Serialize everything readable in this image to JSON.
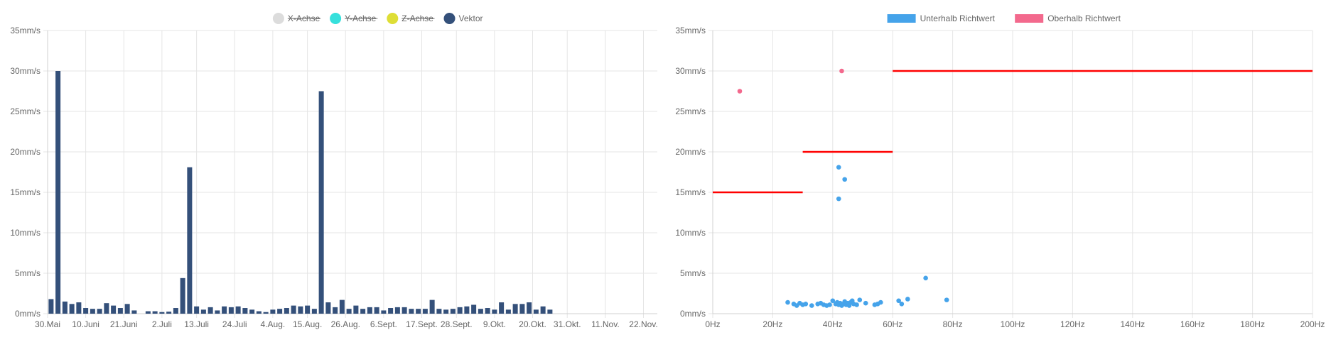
{
  "charts": {
    "left": {
      "legend": [
        {
          "label": "X-Achse",
          "color": "#dcdcdc",
          "hidden": true
        },
        {
          "label": "Y-Achse",
          "color": "#36e0dc",
          "hidden": true
        },
        {
          "label": "Z-Achse",
          "color": "#dede36",
          "hidden": true
        },
        {
          "label": "Vektor",
          "color": "#34507a",
          "hidden": false
        }
      ]
    },
    "right": {
      "legend": [
        {
          "label": "Unterhalb Richtwert",
          "color": "#45a3ea"
        },
        {
          "label": "Oberhalb Richtwert",
          "color": "#f3698d"
        }
      ]
    }
  },
  "chart_data": [
    {
      "type": "bar",
      "series": [
        {
          "name": "Vektor",
          "color": "#34507a",
          "values": [
            1.8,
            30,
            1.5,
            1.2,
            1.4,
            0.7,
            0.6,
            0.6,
            1.3,
            1.0,
            0.7,
            1.2,
            0.4,
            0,
            0.3,
            0.3,
            0.2,
            0.25,
            0.7,
            4.4,
            18.1,
            0.9,
            0.5,
            0.8,
            0.4,
            0.9,
            0.8,
            0.9,
            0.7,
            0.5,
            0.3,
            0.2,
            0.5,
            0.6,
            0.7,
            1.0,
            0.9,
            1.0,
            0.6,
            27.5,
            1.4,
            0.8,
            1.7,
            0.6,
            1.0,
            0.6,
            0.8,
            0.8,
            0.4,
            0.7,
            0.8,
            0.8,
            0.6,
            0.6,
            0.6,
            1.7,
            0.6,
            0.5,
            0.6,
            0.8,
            0.9,
            1.1,
            0.6,
            0.7,
            0.5,
            1.4,
            0.5,
            1.2,
            1.2,
            1.4,
            0.5,
            0.9,
            0.5
          ]
        }
      ],
      "xticks": [
        {
          "label": "30.Mai",
          "index": 0
        },
        {
          "label": "10.Juni",
          "index": 5.5
        },
        {
          "label": "21.Juni",
          "index": 11
        },
        {
          "label": "2.Juli",
          "index": 16.5
        },
        {
          "label": "13.Juli",
          "index": 21.5
        },
        {
          "label": "24.Juli",
          "index": 27
        },
        {
          "label": "4.Aug.",
          "index": 32.5
        },
        {
          "label": "15.Aug.",
          "index": 37.5
        },
        {
          "label": "26.Aug.",
          "index": 43
        },
        {
          "label": "6.Sept.",
          "index": 48.5
        },
        {
          "label": "17.Sept.",
          "index": 54
        },
        {
          "label": "28.Sept.",
          "index": 59
        },
        {
          "label": "9.Okt.",
          "index": 64.5
        },
        {
          "label": "20.Okt.",
          "index": 70
        },
        {
          "label": "31.Okt.",
          "index": 75
        },
        {
          "label": "11.Nov.",
          "index": 80.5
        },
        {
          "label": "22.Nov.",
          "index": 86
        }
      ],
      "x_total_slots": 88,
      "yticks": [
        "0mm/s",
        "5mm/s",
        "10mm/s",
        "15mm/s",
        "20mm/s",
        "25mm/s",
        "30mm/s",
        "35mm/s"
      ],
      "ylim": [
        0,
        35
      ],
      "grid": true,
      "legend_position": "top"
    },
    {
      "type": "scatter",
      "xlim": [
        0,
        200
      ],
      "ylim": [
        0,
        35
      ],
      "xticks": [
        "0Hz",
        "20Hz",
        "40Hz",
        "60Hz",
        "80Hz",
        "100Hz",
        "120Hz",
        "140Hz",
        "160Hz",
        "180Hz",
        "200Hz"
      ],
      "yticks": [
        "0mm/s",
        "5mm/s",
        "10mm/s",
        "15mm/s",
        "20mm/s",
        "25mm/s",
        "30mm/s",
        "35mm/s"
      ],
      "grid": true,
      "legend_position": "top",
      "threshold": {
        "color": "#ff0000",
        "segments": [
          {
            "x": [
              0,
              30
            ],
            "y": 15
          },
          {
            "x": [
              30,
              60
            ],
            "y": 20
          },
          {
            "x": [
              60,
              200
            ],
            "y": 30
          }
        ]
      },
      "series": [
        {
          "name": "Unterhalb Richtwert",
          "color": "#45a3ea",
          "points": [
            [
              25,
              1.4
            ],
            [
              27,
              1.2
            ],
            [
              28,
              1.0
            ],
            [
              29,
              1.3
            ],
            [
              30,
              1.1
            ],
            [
              31,
              1.2
            ],
            [
              33,
              1.0
            ],
            [
              35,
              1.2
            ],
            [
              36,
              1.3
            ],
            [
              37,
              1.1
            ],
            [
              38,
              1.0
            ],
            [
              39,
              1.1
            ],
            [
              40,
              1.6
            ],
            [
              41,
              1.2
            ],
            [
              41.5,
              1.4
            ],
            [
              42,
              1.1
            ],
            [
              42.5,
              1.3
            ],
            [
              43,
              1.0
            ],
            [
              43.5,
              1.2
            ],
            [
              44,
              1.5
            ],
            [
              44.5,
              1.1
            ],
            [
              45,
              1.3
            ],
            [
              45.5,
              1.0
            ],
            [
              46,
              1.4
            ],
            [
              46.5,
              1.6
            ],
            [
              47,
              1.2
            ],
            [
              48,
              1.1
            ],
            [
              49,
              1.7
            ],
            [
              51,
              1.3
            ],
            [
              54,
              1.1
            ],
            [
              55,
              1.2
            ],
            [
              56,
              1.4
            ],
            [
              62,
              1.6
            ],
            [
              63,
              1.2
            ],
            [
              65,
              1.8
            ],
            [
              71,
              4.4
            ],
            [
              78,
              1.7
            ],
            [
              42,
              18.1
            ],
            [
              44,
              16.6
            ],
            [
              42,
              14.2
            ]
          ]
        },
        {
          "name": "Oberhalb Richtwert",
          "color": "#f3698d",
          "points": [
            [
              9,
              27.5
            ],
            [
              43,
              30
            ]
          ]
        }
      ]
    }
  ]
}
